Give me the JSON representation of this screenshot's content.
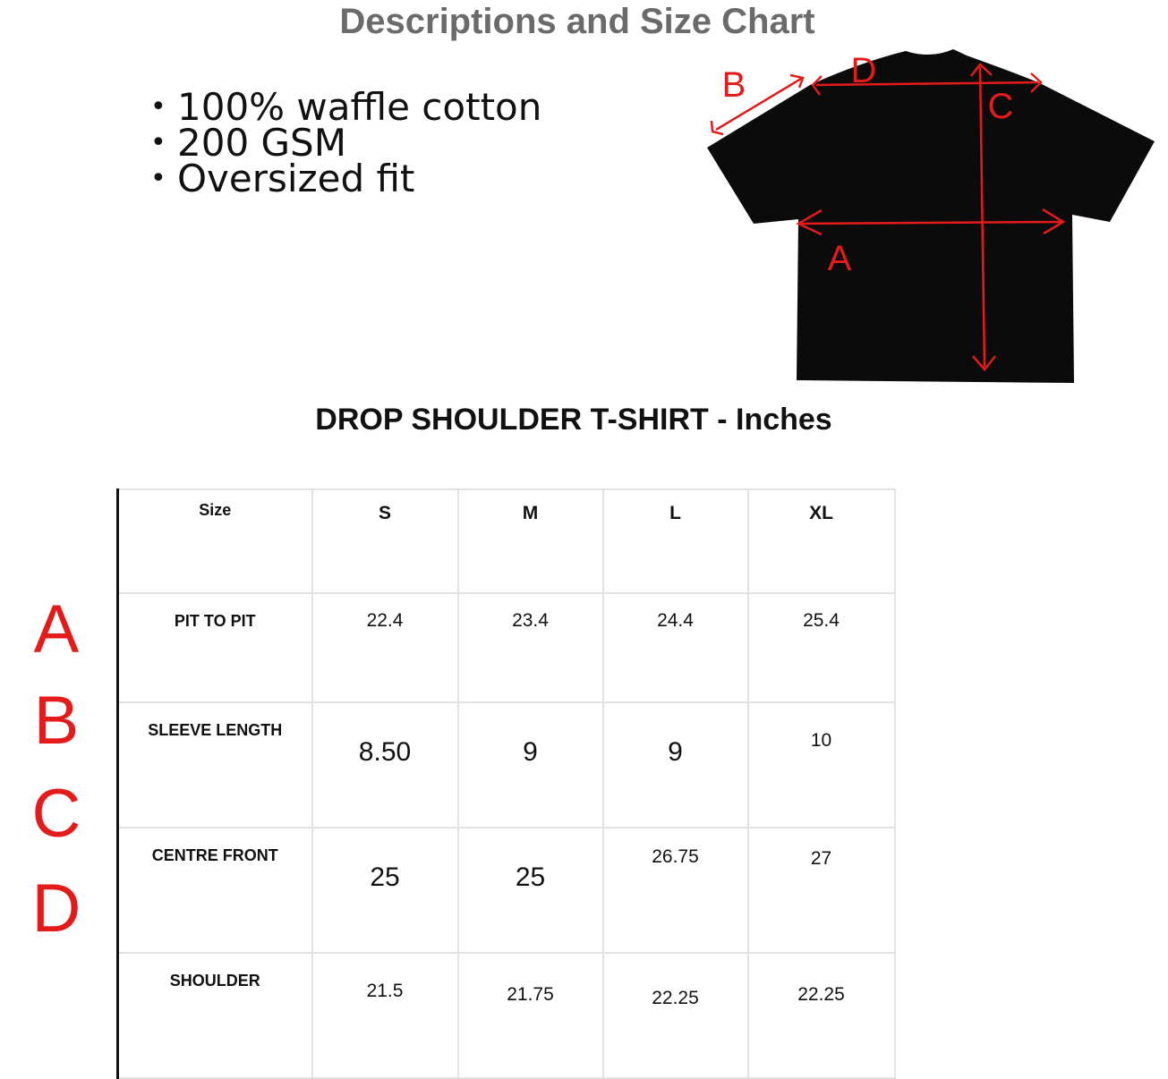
{
  "title": "Descriptions and Size Chart",
  "features": [
    "100% waffle cotton",
    "200 GSM",
    "Oversized fit"
  ],
  "diagram": {
    "labels": [
      "A",
      "B",
      "C",
      "D"
    ],
    "arrow_color": "#e31b1b",
    "shirt_color": "#0b0b0b"
  },
  "chart_title": "DROP SHOULDER T-SHIRT - Inches",
  "row_letters": [
    "A",
    "B",
    "C",
    "D"
  ],
  "table": {
    "headers": [
      "Size",
      "S",
      "M",
      "L",
      "XL"
    ],
    "rows": [
      {
        "label": "PIT TO PIT",
        "values": [
          "22.4",
          "23.4",
          "24.4",
          "25.4"
        ]
      },
      {
        "label": "SLEEVE LENGTH",
        "values": [
          "8.50",
          "9",
          "9",
          "10"
        ]
      },
      {
        "label": "CENTRE FRONT",
        "values": [
          "25",
          "25",
          "26.75",
          "27"
        ]
      },
      {
        "label": "SHOULDER",
        "values": [
          "21.5",
          "21.75",
          "22.25",
          "22.25"
        ]
      }
    ]
  }
}
